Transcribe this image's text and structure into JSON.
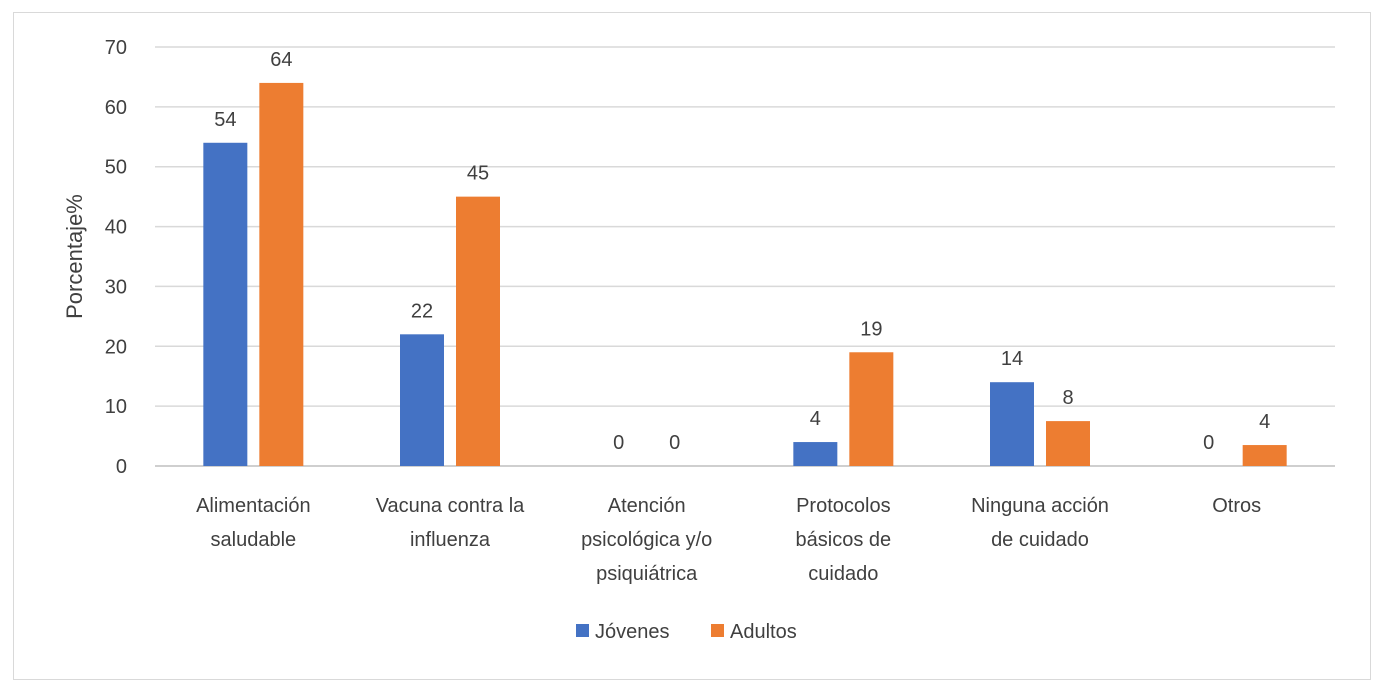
{
  "chart_data": {
    "type": "bar",
    "categories": [
      [
        "Alimentación",
        "saludable"
      ],
      [
        "Vacuna contra la",
        "influenza"
      ],
      [
        "Atención",
        "psicológica y/o",
        "psiquiátrica"
      ],
      [
        "Protocolos",
        "básicos de",
        "cuidado"
      ],
      [
        "Ninguna acción",
        "de cuidado"
      ],
      [
        "Otros"
      ]
    ],
    "series": [
      {
        "name": "Jóvenes",
        "color": "#4472c4",
        "values": [
          54,
          22,
          0,
          4,
          14,
          0
        ],
        "labels": [
          "54",
          "22",
          "0",
          "4",
          "14",
          "0"
        ]
      },
      {
        "name": "Adultos",
        "color": "#ed7d31",
        "values": [
          64,
          45,
          0,
          19,
          7.5,
          3.5
        ],
        "labels": [
          "64",
          "45",
          "0",
          "19",
          "8",
          "4"
        ]
      }
    ],
    "ylabel": "Porcentaje%",
    "xlabel": "",
    "ylim": [
      0,
      70
    ],
    "yticks": [
      0,
      10,
      20,
      30,
      40,
      50,
      60,
      70
    ],
    "grid": true,
    "legend_position": "bottom"
  }
}
